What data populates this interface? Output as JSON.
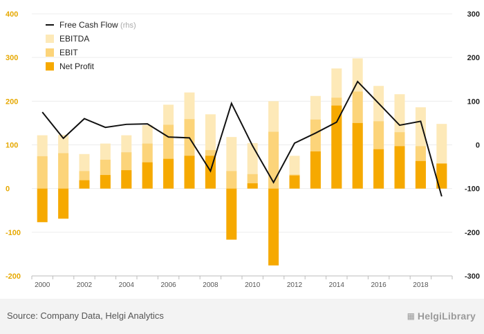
{
  "chart_data": {
    "type": "bar",
    "x": [
      2000,
      2001,
      2002,
      2003,
      2004,
      2005,
      2006,
      2007,
      2008,
      2009,
      2010,
      2011,
      2012,
      2013,
      2014,
      2015,
      2016,
      2017,
      2018,
      2019
    ],
    "x_tick_labels": [
      "2000",
      "2002",
      "2004",
      "2006",
      "2008",
      "2010",
      "2012",
      "2014",
      "2016",
      "2018"
    ],
    "series": [
      {
        "name": "EBITDA",
        "axis": "left",
        "kind": "bar",
        "color": "#fde9b8",
        "values": [
          122,
          123,
          79,
          103,
          122,
          145,
          192,
          220,
          170,
          118,
          104,
          200,
          75,
          212,
          275,
          298,
          235,
          216,
          186,
          148
        ]
      },
      {
        "name": "EBIT",
        "axis": "left",
        "kind": "bar",
        "color": "#fcd47a",
        "values": [
          74,
          81,
          40,
          66,
          83,
          103,
          146,
          159,
          88,
          40,
          33,
          130,
          32,
          158,
          208,
          222,
          154,
          129,
          97,
          58
        ]
      },
      {
        "name": "Net Profit",
        "axis": "left",
        "kind": "bar",
        "color": "#f6a900",
        "values": [
          -77,
          -69,
          19,
          31,
          42,
          60,
          68,
          75,
          75,
          -117,
          12,
          -176,
          30,
          85,
          190,
          150,
          90,
          97,
          63,
          57
        ]
      },
      {
        "name": "Free Cash Flow",
        "legend_suffix": "(rhs)",
        "axis": "right",
        "kind": "line",
        "color": "#111111",
        "values": [
          75,
          15,
          60,
          40,
          47,
          48,
          18,
          16,
          -60,
          95,
          -2,
          -86,
          4,
          27,
          52,
          145,
          95,
          45,
          54,
          -118
        ]
      }
    ],
    "y_left": {
      "min": -200,
      "max": 400,
      "ticks": [
        -200,
        -100,
        0,
        100,
        200,
        300,
        400
      ],
      "color": "#e6a800"
    },
    "y_right": {
      "min": -300,
      "max": 300,
      "ticks": [
        -300,
        -200,
        -100,
        0,
        100,
        200,
        300
      ]
    },
    "grid": "horizontal",
    "legend_position": "top-left",
    "source": "Source: Company Data, Helgi Analytics",
    "brand": "HelgiLibrary"
  }
}
